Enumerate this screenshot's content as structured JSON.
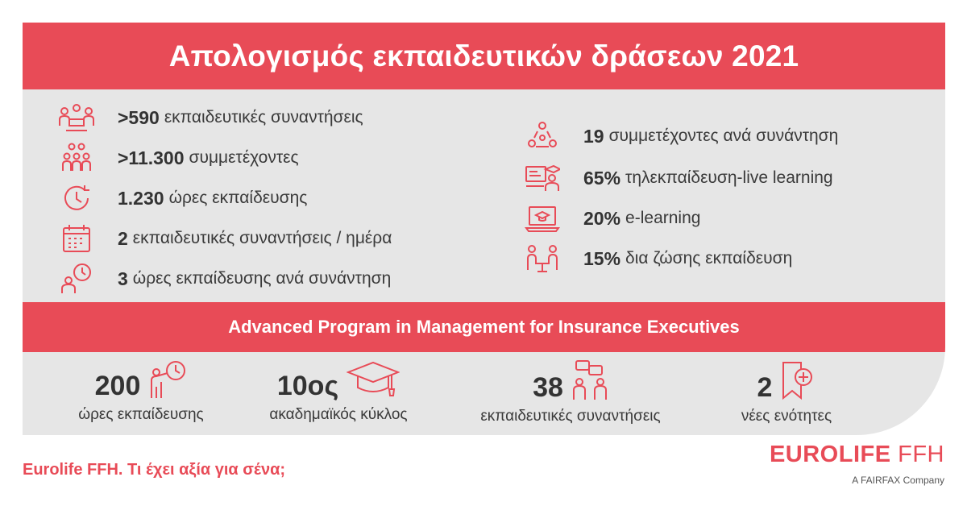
{
  "header": {
    "title": "Απολογισμός εκπαιδευτικών δράσεων 2021"
  },
  "stats_left": [
    {
      "value": ">590",
      "label": "εκπαιδευτικές συναντήσεις",
      "icon": "meeting-people-icon"
    },
    {
      "value": ">11.300",
      "label": "συμμετέχοντες",
      "icon": "group-people-icon"
    },
    {
      "value": "1.230",
      "label": "ώρες εκπαίδευσης",
      "icon": "clock-arrow-icon"
    },
    {
      "value": "2",
      "label": "εκπαιδευτικές συναντήσεις / ημέρα",
      "icon": "calendar-icon"
    },
    {
      "value": "3",
      "label": "ώρες εκπαίδευσης ανά συνάντηση",
      "icon": "person-clock-icon"
    }
  ],
  "stats_right": [
    {
      "value": "19",
      "label": "συμμετέχοντες ανά συνάντηση",
      "icon": "network-people-icon"
    },
    {
      "value": "65%",
      "label": "τηλεκπαίδευση-live learning",
      "icon": "video-class-icon"
    },
    {
      "value": "20%",
      "label": "e-learning",
      "icon": "laptop-graduation-icon"
    },
    {
      "value": "15%",
      "label": "δια ζώσης εκπαίδευση",
      "icon": "face-to-face-icon"
    }
  ],
  "program": {
    "title": "Advanced Program in Management for Insurance Executives",
    "metrics": [
      {
        "value": "200",
        "label": "ώρες εκπαίδευσης",
        "icon": "presenter-clock-icon"
      },
      {
        "value": "10ος",
        "label": "ακαδημαϊκός κύκλος",
        "icon": "graduation-cap-icon"
      },
      {
        "value": "38",
        "label": "εκπαιδευτικές συναντήσεις",
        "icon": "chat-people-icon"
      },
      {
        "value": "2",
        "label": "νέες ενότητες",
        "icon": "bookmark-plus-icon"
      }
    ]
  },
  "footer": {
    "slogan": "Eurolife FFH. Τι έχει αξία για σένα;",
    "brand_bold": "EUROLIFE",
    "brand_light": "FFH",
    "tagline": "A FAIRFAX Company"
  },
  "colors": {
    "accent": "#e84b57",
    "panel": "#e6e6e6"
  }
}
